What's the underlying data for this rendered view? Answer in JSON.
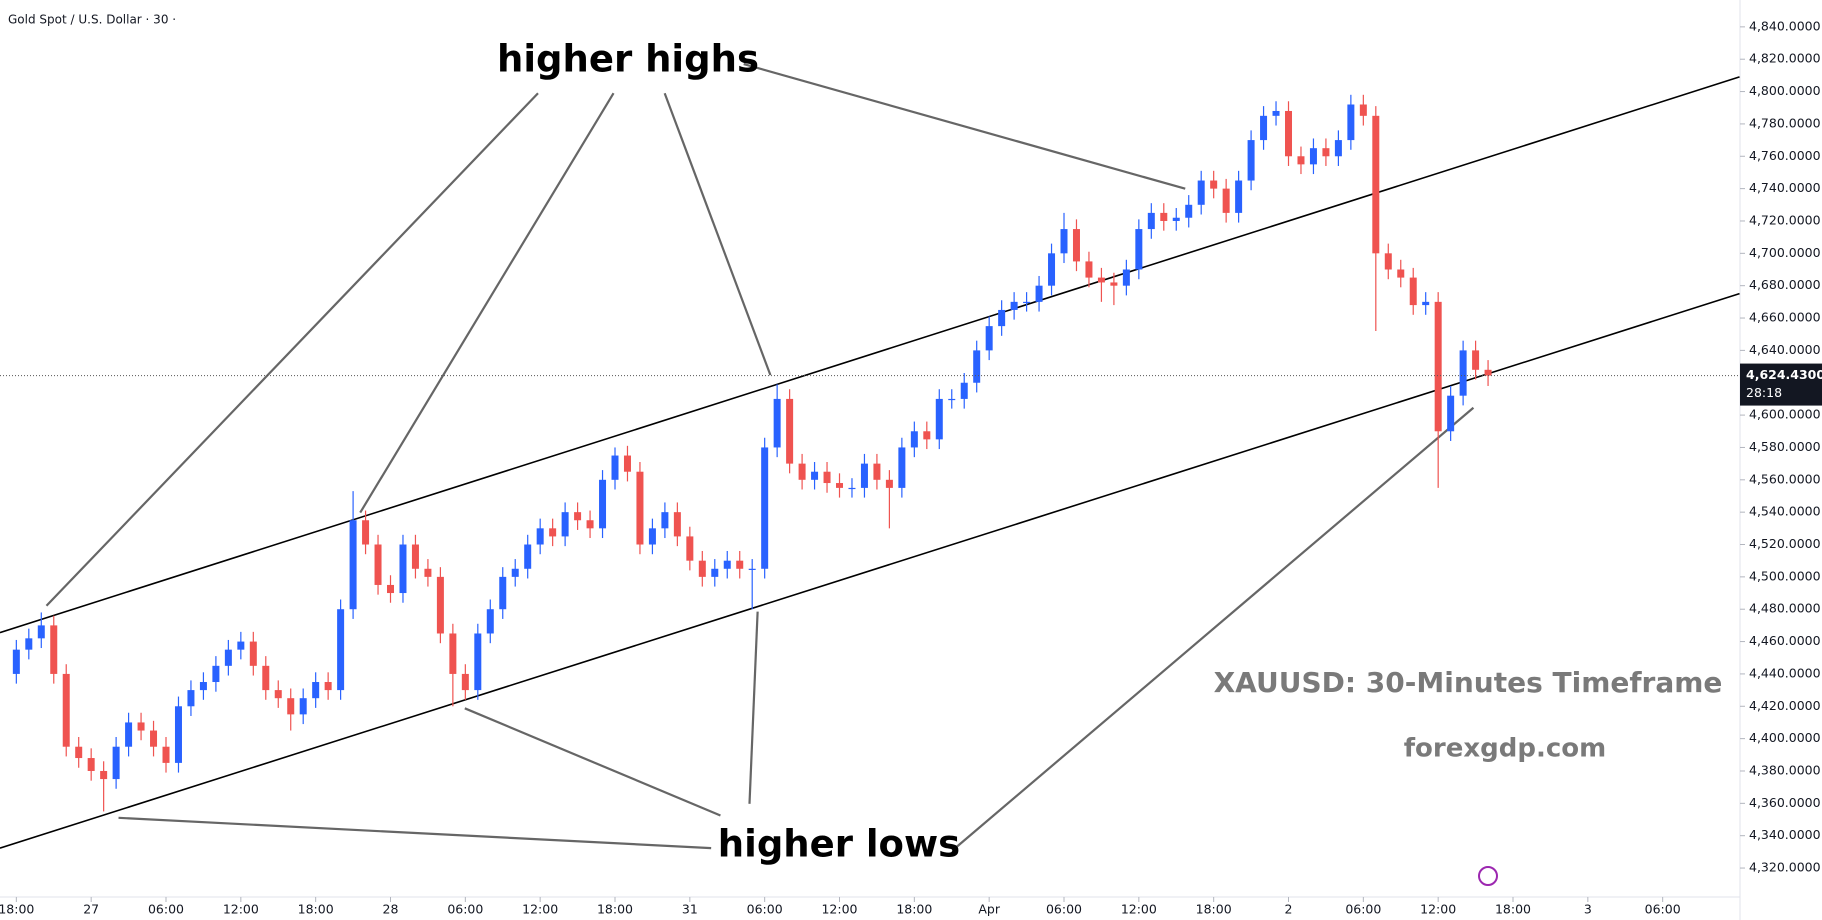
{
  "chart_data": {
    "type": "candlestick",
    "title": "Gold Spot / U.S. Dollar · 30 ·",
    "annotations": [
      "higher highs",
      "higher lows",
      "XAUUSD: 30-Minutes Timeframe",
      "forexgdp.com"
    ],
    "up_color": "#2962ff",
    "down_color": "#ef5350",
    "open": [
      4440,
      4455,
      4462,
      4470,
      4440,
      4395,
      4388,
      4380,
      4375,
      4395,
      4410,
      4405,
      4395,
      4385,
      4420,
      4430,
      4435,
      4445,
      4455,
      4460,
      4445,
      4430,
      4425,
      4415,
      4425,
      4435,
      4430,
      4480,
      4535,
      4520,
      4495,
      4490,
      4520,
      4505,
      4500,
      4465,
      4440,
      4430,
      4465,
      4480,
      4500,
      4505,
      4520,
      4530,
      4525,
      4540,
      4535,
      4530,
      4560,
      4575,
      4565,
      4520,
      4530,
      4540,
      4525,
      4510,
      4500,
      4505,
      4510,
      4505,
      4505,
      4580,
      4610,
      4570,
      4560,
      4565,
      4558,
      4555,
      4555,
      4570,
      4560,
      4555,
      4580,
      4590,
      4585,
      4610,
      4610,
      4620,
      4640,
      4655,
      4665,
      4670,
      4670,
      4680,
      4700,
      4715,
      4695,
      4685,
      4682,
      4680,
      4690,
      4715,
      4725,
      4720,
      4722,
      4730,
      4745,
      4740,
      4725,
      4745,
      4770,
      4785,
      4788,
      4760,
      4755,
      4765,
      4760,
      4770,
      4792,
      4785,
      4700,
      4690,
      4685,
      4668,
      4670,
      4590,
      4612,
      4640,
      4628
    ],
    "high": [
      4461,
      4468,
      4478,
      4476,
      4446,
      4401,
      4394,
      4386,
      4401,
      4416,
      4416,
      4411,
      4401,
      4426,
      4436,
      4441,
      4451,
      4461,
      4466,
      4466,
      4451,
      4436,
      4431,
      4431,
      4441,
      4441,
      4486,
      4553,
      4541,
      4526,
      4501,
      4526,
      4526,
      4511,
      4506,
      4471,
      4446,
      4471,
      4486,
      4506,
      4511,
      4526,
      4536,
      4536,
      4546,
      4546,
      4541,
      4566,
      4580,
      4581,
      4571,
      4536,
      4546,
      4546,
      4531,
      4516,
      4511,
      4516,
      4516,
      4511,
      4586,
      4619,
      4616,
      4576,
      4571,
      4571,
      4564,
      4561,
      4576,
      4576,
      4566,
      4586,
      4596,
      4596,
      4616,
      4616,
      4626,
      4646,
      4661,
      4671,
      4676,
      4676,
      4686,
      4706,
      4725,
      4721,
      4701,
      4691,
      4688,
      4696,
      4721,
      4731,
      4731,
      4728,
      4736,
      4751,
      4751,
      4746,
      4751,
      4776,
      4791,
      4794,
      4794,
      4766,
      4771,
      4771,
      4776,
      4798,
      4798,
      4791,
      4706,
      4696,
      4691,
      4676,
      4676,
      4618,
      4646,
      4646,
      4634
    ],
    "low": [
      4434,
      4449,
      4456,
      4434,
      4389,
      4382,
      4374,
      4355,
      4369,
      4389,
      4399,
      4389,
      4379,
      4379,
      4414,
      4424,
      4429,
      4439,
      4449,
      4439,
      4424,
      4419,
      4405,
      4409,
      4419,
      4424,
      4424,
      4474,
      4514,
      4489,
      4484,
      4484,
      4499,
      4494,
      4459,
      4420,
      4424,
      4424,
      4459,
      4474,
      4494,
      4499,
      4514,
      4519,
      4519,
      4529,
      4524,
      4524,
      4554,
      4559,
      4514,
      4514,
      4524,
      4519,
      4504,
      4494,
      4494,
      4499,
      4499,
      4480,
      4499,
      4574,
      4564,
      4554,
      4554,
      4552,
      4549,
      4549,
      4549,
      4554,
      4530,
      4549,
      4574,
      4579,
      4579,
      4604,
      4604,
      4614,
      4634,
      4649,
      4659,
      4664,
      4664,
      4674,
      4694,
      4689,
      4679,
      4670,
      4668,
      4674,
      4684,
      4709,
      4714,
      4714,
      4716,
      4724,
      4734,
      4719,
      4719,
      4739,
      4764,
      4779,
      4754,
      4749,
      4749,
      4754,
      4754,
      4764,
      4779,
      4652,
      4684,
      4679,
      4662,
      4662,
      4555,
      4584,
      4606,
      4622,
      4618
    ],
    "close": [
      4455,
      4462,
      4470,
      4440,
      4395,
      4388,
      4380,
      4375,
      4395,
      4410,
      4405,
      4395,
      4385,
      4420,
      4430,
      4435,
      4445,
      4455,
      4460,
      4445,
      4430,
      4425,
      4415,
      4425,
      4435,
      4430,
      4480,
      4535,
      4520,
      4495,
      4490,
      4520,
      4505,
      4500,
      4465,
      4440,
      4430,
      4465,
      4480,
      4500,
      4505,
      4520,
      4530,
      4525,
      4540,
      4535,
      4530,
      4560,
      4575,
      4565,
      4520,
      4530,
      4540,
      4525,
      4510,
      4500,
      4505,
      4510,
      4505,
      4505,
      4580,
      4610,
      4570,
      4560,
      4565,
      4558,
      4555,
      4555,
      4570,
      4560,
      4555,
      4580,
      4590,
      4585,
      4610,
      4610,
      4620,
      4640,
      4655,
      4665,
      4670,
      4670,
      4680,
      4700,
      4715,
      4695,
      4685,
      4682,
      4680,
      4690,
      4715,
      4725,
      4720,
      4722,
      4730,
      4745,
      4740,
      4725,
      4745,
      4770,
      4785,
      4788,
      4760,
      4755,
      4765,
      4760,
      4770,
      4792,
      4785,
      4700,
      4690,
      4685,
      4668,
      4670,
      4590,
      4612,
      4640,
      4628,
      4624.43
    ],
    "last_price": {
      "value": 4624.43,
      "label": "4,624.4300"
    },
    "countdown": "28:18",
    "xlim": [
      -1.31,
      138.2
    ],
    "xticks": [
      {
        "value": 0,
        "label": "18:00"
      },
      {
        "value": 6,
        "label": "27"
      },
      {
        "value": 12,
        "label": "06:00"
      },
      {
        "value": 18,
        "label": "12:00"
      },
      {
        "value": 24,
        "label": "18:00"
      },
      {
        "value": 30,
        "label": "28"
      },
      {
        "value": 36,
        "label": "06:00"
      },
      {
        "value": 42,
        "label": "12:00"
      },
      {
        "value": 48,
        "label": "18:00"
      },
      {
        "value": 54,
        "label": "31"
      },
      {
        "value": 60,
        "label": "06:00"
      },
      {
        "value": 66,
        "label": "12:00"
      },
      {
        "value": 72,
        "label": "18:00"
      },
      {
        "value": 78,
        "label": "Apr"
      },
      {
        "value": 84,
        "label": "06:00"
      },
      {
        "value": 90,
        "label": "12:00"
      },
      {
        "value": 96,
        "label": "18:00"
      },
      {
        "value": 102,
        "label": "2"
      },
      {
        "value": 108,
        "label": "06:00"
      },
      {
        "value": 114,
        "label": "12:00"
      },
      {
        "value": 120,
        "label": "18:00"
      },
      {
        "value": 126,
        "label": "3"
      },
      {
        "value": 132,
        "label": "06:00"
      }
    ],
    "ylim": [
      4302.1,
      4856.6
    ],
    "yticks": [
      {
        "value": 4320,
        "label": "4,320.0000"
      },
      {
        "value": 4340,
        "label": "4,340.0000"
      },
      {
        "value": 4360,
        "label": "4,360.0000"
      },
      {
        "value": 4380,
        "label": "4,380.0000"
      },
      {
        "value": 4400,
        "label": "4,400.0000"
      },
      {
        "value": 4420,
        "label": "4,420.0000"
      },
      {
        "value": 4440,
        "label": "4,440.0000"
      },
      {
        "value": 4460,
        "label": "4,460.0000"
      },
      {
        "value": 4480,
        "label": "4,480.0000"
      },
      {
        "value": 4500,
        "label": "4,500.0000"
      },
      {
        "value": 4520,
        "label": "4,520.0000"
      },
      {
        "value": 4540,
        "label": "4,540.0000"
      },
      {
        "value": 4560,
        "label": "4,560.0000"
      },
      {
        "value": 4580,
        "label": "4,580.0000"
      },
      {
        "value": 4600,
        "label": "4,600.0000"
      },
      {
        "value": 4640,
        "label": "4,640.0000"
      },
      {
        "value": 4660,
        "label": "4,660.0000"
      },
      {
        "value": 4680,
        "label": "4,680.0000"
      },
      {
        "value": 4700,
        "label": "4,700.0000"
      },
      {
        "value": 4720,
        "label": "4,720.0000"
      },
      {
        "value": 4740,
        "label": "4,740.0000"
      },
      {
        "value": 4760,
        "label": "4,760.0000"
      },
      {
        "value": 4780,
        "label": "4,780.0000"
      },
      {
        "value": 4800,
        "label": "4,800.0000"
      },
      {
        "value": 4820,
        "label": "4,820.0000"
      },
      {
        "value": 4840,
        "label": "4,840.0000"
      }
    ]
  }
}
